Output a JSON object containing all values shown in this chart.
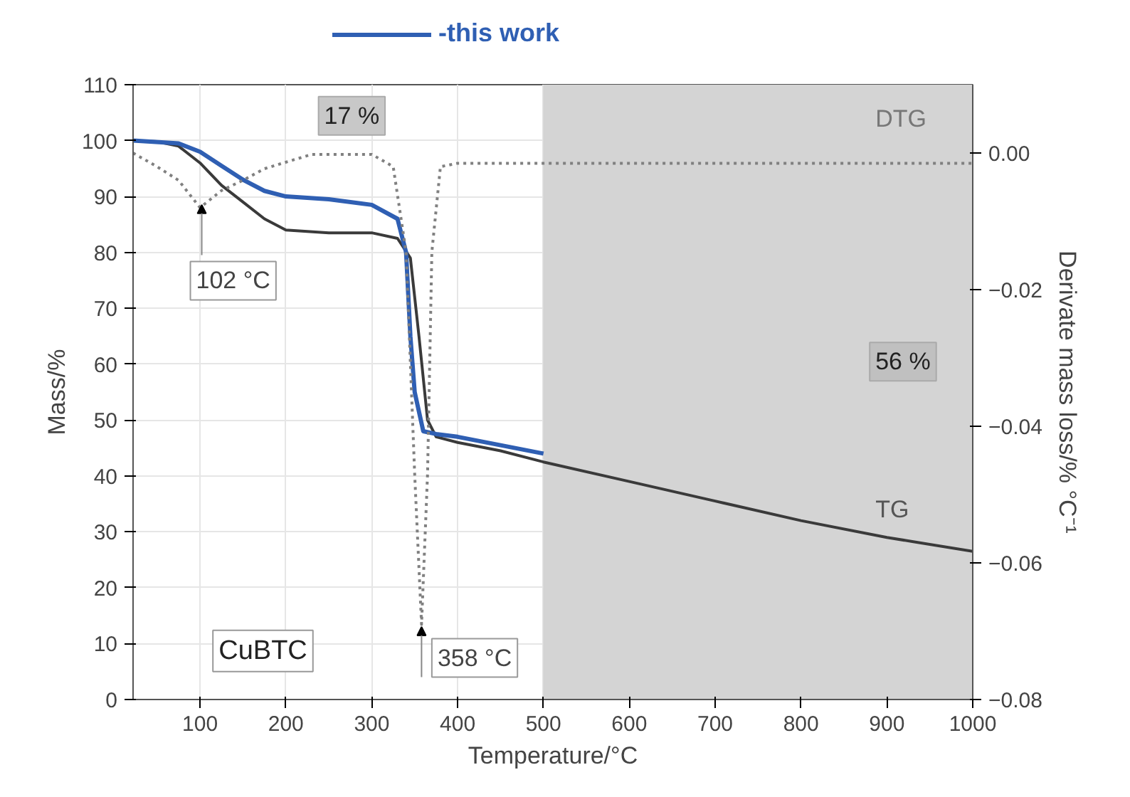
{
  "chart_data": {
    "type": "line",
    "xlabel": "Temperature/°C",
    "ylabel": "Mass/%",
    "y2label": "Derivate mass loss/% °C⁻¹",
    "xlim": [
      22,
      1000
    ],
    "xticks": [
      100,
      200,
      300,
      400,
      500,
      600,
      700,
      800,
      900,
      1000
    ],
    "ylim": [
      0,
      110
    ],
    "yticks": [
      0,
      10,
      20,
      30,
      40,
      50,
      60,
      70,
      80,
      90,
      100,
      110
    ],
    "y2lim": [
      -0.08,
      0.01
    ],
    "y2ticks": [
      {
        "value": 0,
        "label": "0.00"
      },
      {
        "value": -0.02,
        "label": "−0.02"
      },
      {
        "value": -0.04,
        "label": "−0.04"
      },
      {
        "value": -0.06,
        "label": "−0.06"
      },
      {
        "value": -0.08,
        "label": "−0.08"
      }
    ],
    "grid": true,
    "legend": "top",
    "line_style": "solid",
    "bands": [
      {
        "axis": "x",
        "from": 500,
        "to": 1000,
        "color": "#d4d4d4"
      }
    ],
    "series": [
      {
        "color": "#3a3a3a",
        "x": [
          22,
          50,
          75,
          100,
          125,
          150,
          175,
          200,
          250,
          300,
          330,
          345,
          355,
          365,
          375,
          400,
          450,
          500,
          600,
          700,
          800,
          900,
          1000
        ],
        "values": [
          100,
          99.8,
          99,
          96,
          92,
          89,
          86,
          84,
          83.5,
          83.5,
          82.5,
          79,
          65,
          50,
          47,
          46,
          44.5,
          42.5,
          39,
          35.5,
          32,
          29,
          26.5
        ]
      },
      {
        "name": "-this work",
        "color": "#2f5fb3",
        "x": [
          22,
          75,
          100,
          125,
          150,
          175,
          200,
          250,
          300,
          330,
          340,
          345,
          350,
          360,
          375,
          400,
          450,
          500
        ],
        "values": [
          100,
          99.5,
          98,
          95.5,
          93,
          91,
          90,
          89.5,
          88.5,
          86,
          80,
          65,
          55,
          48,
          47.5,
          47,
          45.5,
          44
        ]
      },
      {
        "axis": "y2",
        "line_style": "dotted",
        "color": "#808080",
        "x": [
          22,
          50,
          75,
          100,
          125,
          150,
          175,
          230,
          300,
          325,
          340,
          350,
          358,
          365,
          370,
          380,
          400,
          500,
          1000
        ],
        "values": [
          0.0,
          -0.002,
          -0.004,
          -0.008,
          -0.0055,
          -0.004,
          -0.0023,
          -0.0002,
          -0.0002,
          -0.002,
          -0.0145,
          -0.047,
          -0.069,
          -0.047,
          -0.0145,
          -0.002,
          -0.0015,
          -0.0015,
          -0.0015
        ]
      }
    ],
    "annotations": [
      {
        "text": "102 °C",
        "x": 102,
        "y": 88.5
      },
      {
        "text": "358 °C",
        "x": 358,
        "y": 13
      },
      "17 %",
      "56 %",
      "DTG",
      "TG",
      "CuBTC"
    ]
  }
}
